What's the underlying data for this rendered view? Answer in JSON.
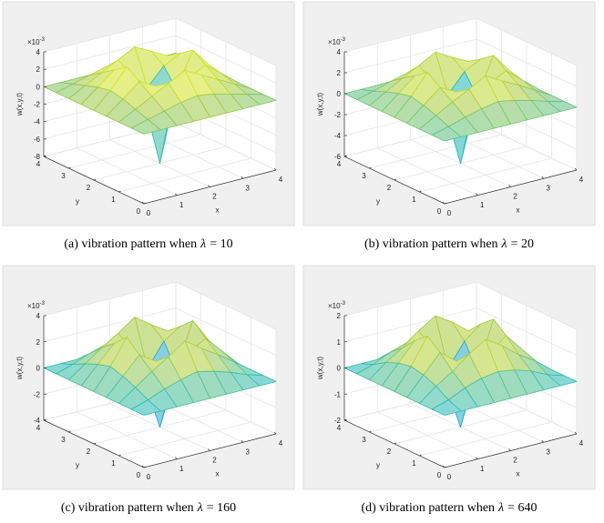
{
  "chart_data": [
    {
      "type": "surface",
      "caption": {
        "label": "(a) vibration pattern when",
        "symbol": "λ",
        "relation": "= 10"
      },
      "z_label": "w(x,y,t)",
      "x_label": "x",
      "y_label": "y",
      "exponent": {
        "base": "×10",
        "power": "-3"
      },
      "colormap": [
        "#3e26a8",
        "#2f7ef5",
        "#1fb8b8",
        "#a5c93e",
        "#f9fb0e"
      ],
      "grid": true,
      "x": [
        0,
        0.5,
        1,
        1.5,
        2,
        2.5,
        3,
        3.5,
        4
      ],
      "y": [
        0,
        0.5,
        1,
        1.5,
        2,
        2.5,
        3,
        3.5,
        4
      ],
      "z": [
        [
          0,
          0,
          0,
          0,
          0,
          0,
          0,
          0,
          0
        ],
        [
          0,
          0.5,
          1,
          1.5,
          1.8,
          1.5,
          1,
          0.5,
          0
        ],
        [
          0,
          1,
          2,
          3,
          4,
          3,
          2,
          1,
          0
        ],
        [
          0,
          1.5,
          3,
          2,
          0,
          2,
          3,
          1.5,
          0
        ],
        [
          0,
          1.8,
          4,
          0,
          -8,
          0,
          4,
          1.8,
          0
        ],
        [
          0,
          1.5,
          3,
          2,
          0,
          2,
          3,
          1.5,
          0
        ],
        [
          0,
          1,
          2,
          3,
          4,
          3,
          2,
          1,
          0
        ],
        [
          0,
          0.5,
          1,
          1.5,
          1.8,
          1.5,
          1,
          0.5,
          0
        ],
        [
          0,
          0,
          0,
          0,
          0,
          0,
          0,
          0,
          0
        ]
      ],
      "xlim": [
        0,
        4
      ],
      "ylim": [
        0,
        4
      ],
      "zlim": [
        -8,
        4
      ],
      "xticks": [
        0,
        1,
        2,
        3,
        4
      ],
      "yticks": [
        0,
        1,
        2,
        3,
        4
      ],
      "zticks": [
        4,
        2,
        0,
        -2,
        -4,
        -6,
        -8
      ]
    },
    {
      "type": "surface",
      "caption": {
        "label": "(b) vibration pattern when",
        "symbol": "λ",
        "relation": "= 20"
      },
      "z_label": "w(x,y,t)",
      "x_label": "x",
      "y_label": "y",
      "exponent": {
        "base": "×10",
        "power": "-3"
      },
      "colormap": [
        "#3e26a8",
        "#2f7ef5",
        "#1fb8b8",
        "#a5c93e",
        "#f9fb0e"
      ],
      "grid": true,
      "x": [
        0,
        0.5,
        1,
        1.5,
        2,
        2.5,
        3,
        3.5,
        4
      ],
      "y": [
        0,
        0.5,
        1,
        1.5,
        2,
        2.5,
        3,
        3.5,
        4
      ],
      "z": [
        [
          0,
          0,
          0,
          0,
          0,
          0,
          0,
          0,
          0
        ],
        [
          0,
          0.4,
          0.9,
          1.3,
          1.6,
          1.3,
          0.9,
          0.4,
          0
        ],
        [
          0,
          0.9,
          1.8,
          2.6,
          3.5,
          2.6,
          1.8,
          0.9,
          0
        ],
        [
          0,
          1.3,
          2.6,
          1.8,
          0,
          1.8,
          2.6,
          1.3,
          0
        ],
        [
          0,
          1.6,
          3.5,
          0,
          -6,
          0,
          3.5,
          1.6,
          0
        ],
        [
          0,
          1.3,
          2.6,
          1.8,
          0,
          1.8,
          2.6,
          1.3,
          0
        ],
        [
          0,
          0.9,
          1.8,
          2.6,
          3.5,
          2.6,
          1.8,
          0.9,
          0
        ],
        [
          0,
          0.4,
          0.9,
          1.3,
          1.6,
          1.3,
          0.9,
          0.4,
          0
        ],
        [
          0,
          0,
          0,
          0,
          0,
          0,
          0,
          0,
          0
        ]
      ],
      "xlim": [
        0,
        4
      ],
      "ylim": [
        0,
        4
      ],
      "zlim": [
        -6,
        4
      ],
      "xticks": [
        0,
        1,
        2,
        3,
        4
      ],
      "yticks": [
        0,
        1,
        2,
        3,
        4
      ],
      "zticks": [
        4,
        2,
        0,
        -2,
        -4,
        -6
      ]
    },
    {
      "type": "surface",
      "caption": {
        "label": "(c) vibration pattern when",
        "symbol": "λ",
        "relation": "= 160"
      },
      "z_label": "w(x,y,t)",
      "x_label": "x",
      "y_label": "y",
      "exponent": {
        "base": "×10",
        "power": "-3"
      },
      "colormap": [
        "#3e26a8",
        "#2f7ef5",
        "#1fb8b8",
        "#a5c93e",
        "#f9fb0e"
      ],
      "grid": true,
      "x": [
        0,
        0.5,
        1,
        1.5,
        2,
        2.5,
        3,
        3.5,
        4
      ],
      "y": [
        0,
        0.5,
        1,
        1.5,
        2,
        2.5,
        3,
        3.5,
        4
      ],
      "z": [
        [
          0,
          0,
          0,
          0,
          0,
          0,
          0,
          0,
          0
        ],
        [
          0,
          0.4,
          0.9,
          1.3,
          1.6,
          1.3,
          0.9,
          0.4,
          0
        ],
        [
          0,
          0.9,
          1.8,
          2.6,
          3.5,
          2.6,
          1.8,
          0.9,
          0
        ],
        [
          0,
          1.3,
          2.6,
          1.8,
          0,
          1.8,
          2.6,
          1.3,
          0
        ],
        [
          0,
          1.6,
          3.5,
          0,
          -4,
          0,
          3.5,
          1.6,
          0
        ],
        [
          0,
          1.3,
          2.6,
          1.8,
          0,
          1.8,
          2.6,
          1.3,
          0
        ],
        [
          0,
          0.9,
          1.8,
          2.6,
          3.5,
          2.6,
          1.8,
          0.9,
          0
        ],
        [
          0,
          0.4,
          0.9,
          1.3,
          1.6,
          1.3,
          0.9,
          0.4,
          0
        ],
        [
          0,
          0,
          0,
          0,
          0,
          0,
          0,
          0,
          0
        ]
      ],
      "xlim": [
        0,
        4
      ],
      "ylim": [
        0,
        4
      ],
      "zlim": [
        -4,
        4
      ],
      "xticks": [
        0,
        1,
        2,
        3,
        4
      ],
      "yticks": [
        0,
        1,
        2,
        3,
        4
      ],
      "zticks": [
        4,
        2,
        0,
        -2,
        -4
      ]
    },
    {
      "type": "surface",
      "caption": {
        "label": "(d) vibration pattern when",
        "symbol": "λ",
        "relation": "= 640"
      },
      "z_label": "w(x,y,t)",
      "x_label": "x",
      "y_label": "y",
      "exponent": {
        "base": "×10",
        "power": "-3"
      },
      "colormap": [
        "#3e26a8",
        "#2f7ef5",
        "#1fb8b8",
        "#a5c93e",
        "#f9fb0e"
      ],
      "grid": true,
      "x": [
        0,
        0.5,
        1,
        1.5,
        2,
        2.5,
        3,
        3.5,
        4
      ],
      "y": [
        0,
        0.5,
        1,
        1.5,
        2,
        2.5,
        3,
        3.5,
        4
      ],
      "z": [
        [
          0,
          0,
          0,
          0,
          0,
          0,
          0,
          0,
          0
        ],
        [
          0,
          0.2,
          0.5,
          0.7,
          0.8,
          0.7,
          0.5,
          0.2,
          0
        ],
        [
          0,
          0.5,
          0.9,
          1.4,
          1.8,
          1.4,
          0.9,
          0.5,
          0
        ],
        [
          0,
          0.7,
          1.4,
          0.9,
          0,
          0.9,
          1.4,
          0.7,
          0
        ],
        [
          0,
          0.8,
          1.8,
          0,
          -2,
          0,
          1.8,
          0.8,
          0
        ],
        [
          0,
          0.7,
          1.4,
          0.9,
          0,
          0.9,
          1.4,
          0.7,
          0
        ],
        [
          0,
          0.5,
          0.9,
          1.4,
          1.8,
          1.4,
          0.9,
          0.5,
          0
        ],
        [
          0,
          0.2,
          0.5,
          0.7,
          0.8,
          0.7,
          0.5,
          0.2,
          0
        ],
        [
          0,
          0,
          0,
          0,
          0,
          0,
          0,
          0,
          0
        ]
      ],
      "xlim": [
        0,
        4
      ],
      "ylim": [
        0,
        4
      ],
      "zlim": [
        -2,
        2
      ],
      "xticks": [
        0,
        1,
        2,
        3,
        4
      ],
      "yticks": [
        0,
        1,
        2,
        3,
        4
      ],
      "zticks": [
        2,
        1,
        0,
        -1,
        -2
      ]
    }
  ]
}
